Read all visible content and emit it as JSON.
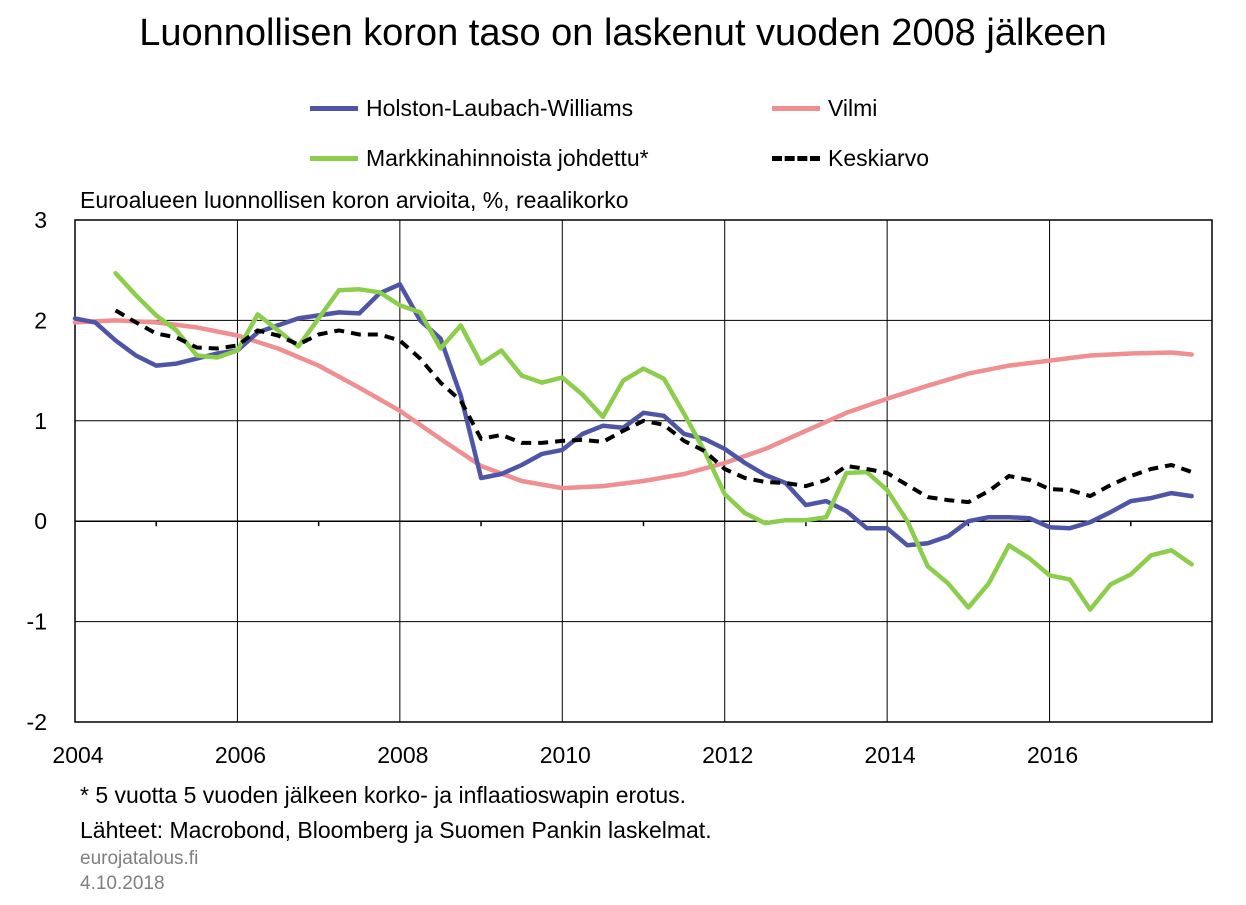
{
  "title": "Luonnollisen koron taso on laskenut vuoden 2008 jälkeen",
  "subtitle": "Euroalueen luonnollisen koron arvioita, %, reaalikorko",
  "footnote": "* 5 vuotta 5 vuoden jälkeen korko- ja inflaatioswapin erotus.",
  "sources": "Lähteet: Macrobond, Bloomberg ja Suomen Pankin laskelmat.",
  "site": "eurojatalous.fi",
  "date": "4.10.2018",
  "colors": {
    "hlw": "#4e55a6",
    "vilmi": "#ef8f91",
    "market": "#8cce4c",
    "mean": "#000000",
    "grid": "#000000"
  },
  "legend": [
    {
      "name": "Holston-Laubach-Williams",
      "series": "hlw"
    },
    {
      "name": "Vilmi",
      "series": "vilmi"
    },
    {
      "name": "Markkinahinnoista johdettu*",
      "series": "market"
    },
    {
      "name": "Keskiarvo",
      "series": "mean"
    }
  ],
  "chart_data": {
    "type": "line",
    "title": "Luonnollisen koron taso on laskenut vuoden 2008 jälkeen",
    "ylabel": "Euroalueen luonnollisen koron arvioita, %, reaalikorko",
    "xlabel": "",
    "xlim": [
      2004,
      2018
    ],
    "ylim": [
      -2,
      3
    ],
    "yticks": [
      3,
      2,
      1,
      0,
      -1,
      -2
    ],
    "yticklabels": [
      "3",
      "2",
      "1",
      "0",
      "-1",
      "-2"
    ],
    "xticks": [
      2004,
      2006,
      2008,
      2010,
      2012,
      2014,
      2016
    ],
    "xticklabels": [
      "2004",
      "2006",
      "2008",
      "2010",
      "2012",
      "2014",
      "2016"
    ],
    "grid": true,
    "legend_position": "top",
    "series": [
      {
        "name": "Holston-Laubach-Williams",
        "key": "hlw",
        "x": [
          2004.0,
          2004.25,
          2004.5,
          2004.75,
          2005.0,
          2005.25,
          2005.5,
          2005.75,
          2006.0,
          2006.25,
          2006.5,
          2006.75,
          2007.0,
          2007.25,
          2007.5,
          2007.75,
          2008.0,
          2008.25,
          2008.5,
          2008.75,
          2009.0,
          2009.25,
          2009.5,
          2009.75,
          2010.0,
          2010.25,
          2010.5,
          2010.75,
          2011.0,
          2011.25,
          2011.5,
          2011.75,
          2012.0,
          2012.25,
          2012.5,
          2012.75,
          2013.0,
          2013.25,
          2013.5,
          2013.75,
          2014.0,
          2014.25,
          2014.5,
          2014.75,
          2015.0,
          2015.25,
          2015.5,
          2015.75,
          2016.0,
          2016.25,
          2016.5,
          2016.75,
          2017.0,
          2017.25,
          2017.5,
          2017.75
        ],
        "values": [
          2.02,
          1.98,
          1.8,
          1.65,
          1.55,
          1.57,
          1.62,
          1.67,
          1.7,
          1.88,
          1.95,
          2.02,
          2.05,
          2.08,
          2.07,
          2.27,
          2.36,
          2.0,
          1.82,
          1.25,
          0.43,
          0.47,
          0.56,
          0.67,
          0.71,
          0.87,
          0.95,
          0.93,
          1.08,
          1.05,
          0.87,
          0.82,
          0.72,
          0.58,
          0.46,
          0.38,
          0.16,
          0.2,
          0.1,
          -0.07,
          -0.07,
          -0.24,
          -0.22,
          -0.15,
          0.0,
          0.04,
          0.04,
          0.03,
          -0.06,
          -0.07,
          -0.01,
          0.09,
          0.2,
          0.23,
          0.28,
          0.25
        ]
      },
      {
        "name": "Vilmi",
        "key": "vilmi",
        "x": [
          2004.0,
          2004.5,
          2005.0,
          2005.5,
          2006.0,
          2006.5,
          2007.0,
          2007.5,
          2008.0,
          2008.5,
          2009.0,
          2009.5,
          2010.0,
          2010.5,
          2011.0,
          2011.5,
          2012.0,
          2012.5,
          2013.0,
          2013.5,
          2014.0,
          2014.5,
          2015.0,
          2015.5,
          2016.0,
          2016.5,
          2017.0,
          2017.5,
          2017.75
        ],
        "values": [
          1.98,
          2.0,
          1.98,
          1.93,
          1.85,
          1.72,
          1.55,
          1.33,
          1.1,
          0.82,
          0.55,
          0.4,
          0.33,
          0.35,
          0.4,
          0.47,
          0.58,
          0.72,
          0.9,
          1.08,
          1.22,
          1.35,
          1.47,
          1.55,
          1.6,
          1.65,
          1.67,
          1.68,
          1.66
        ]
      },
      {
        "name": "Markkinahinnoista johdettu*",
        "key": "market",
        "x": [
          2004.5,
          2004.75,
          2005.0,
          2005.25,
          2005.5,
          2005.75,
          2006.0,
          2006.25,
          2006.5,
          2006.75,
          2007.0,
          2007.25,
          2007.5,
          2007.75,
          2008.0,
          2008.25,
          2008.5,
          2008.75,
          2009.0,
          2009.25,
          2009.5,
          2009.75,
          2010.0,
          2010.25,
          2010.5,
          2010.75,
          2011.0,
          2011.25,
          2011.5,
          2011.75,
          2012.0,
          2012.25,
          2012.5,
          2012.75,
          2013.0,
          2013.25,
          2013.5,
          2013.75,
          2014.0,
          2014.25,
          2014.5,
          2014.75,
          2015.0,
          2015.25,
          2015.5,
          2015.75,
          2016.0,
          2016.25,
          2016.5,
          2016.75,
          2017.0,
          2017.25,
          2017.5,
          2017.75
        ],
        "values": [
          2.47,
          2.25,
          2.05,
          1.9,
          1.65,
          1.63,
          1.7,
          2.06,
          1.9,
          1.74,
          2.02,
          2.3,
          2.31,
          2.28,
          2.15,
          2.08,
          1.72,
          1.95,
          1.57,
          1.7,
          1.45,
          1.38,
          1.43,
          1.26,
          1.04,
          1.4,
          1.52,
          1.42,
          1.07,
          0.7,
          0.27,
          0.08,
          -0.02,
          0.01,
          0.01,
          0.04,
          0.48,
          0.49,
          0.31,
          0.0,
          -0.45,
          -0.62,
          -0.86,
          -0.62,
          -0.24,
          -0.37,
          -0.54,
          -0.58,
          -0.88,
          -0.63,
          -0.53,
          -0.34,
          -0.29,
          -0.43
        ]
      },
      {
        "name": "Keskiarvo",
        "key": "mean",
        "x": [
          2004.5,
          2004.75,
          2005.0,
          2005.25,
          2005.5,
          2005.75,
          2006.0,
          2006.25,
          2006.5,
          2006.75,
          2007.0,
          2007.25,
          2007.5,
          2007.75,
          2008.0,
          2008.25,
          2008.5,
          2008.75,
          2009.0,
          2009.25,
          2009.5,
          2009.75,
          2010.0,
          2010.25,
          2010.5,
          2010.75,
          2011.0,
          2011.25,
          2011.5,
          2011.75,
          2012.0,
          2012.25,
          2012.5,
          2012.75,
          2013.0,
          2013.25,
          2013.5,
          2013.75,
          2014.0,
          2014.25,
          2014.5,
          2014.75,
          2015.0,
          2015.25,
          2015.5,
          2015.75,
          2016.0,
          2016.25,
          2016.5,
          2016.75,
          2017.0,
          2017.25,
          2017.5,
          2017.75
        ],
        "values": [
          2.1,
          1.98,
          1.87,
          1.83,
          1.73,
          1.72,
          1.75,
          1.9,
          1.85,
          1.76,
          1.86,
          1.9,
          1.86,
          1.86,
          1.8,
          1.62,
          1.38,
          1.2,
          0.82,
          0.86,
          0.78,
          0.78,
          0.8,
          0.81,
          0.79,
          0.9,
          1.0,
          0.96,
          0.8,
          0.7,
          0.52,
          0.43,
          0.39,
          0.38,
          0.35,
          0.41,
          0.55,
          0.52,
          0.48,
          0.36,
          0.24,
          0.21,
          0.19,
          0.3,
          0.45,
          0.41,
          0.32,
          0.31,
          0.25,
          0.36,
          0.45,
          0.52,
          0.56,
          0.49
        ]
      }
    ]
  }
}
